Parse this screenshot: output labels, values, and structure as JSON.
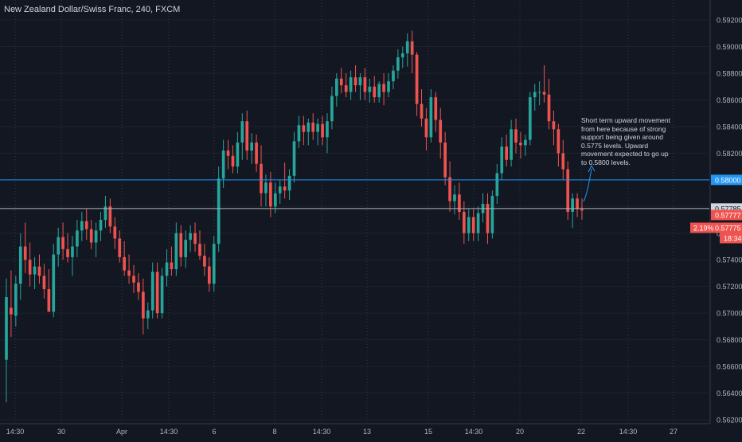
{
  "chart_data": {
    "type": "candlestick",
    "title": "New Zealand Dollar/Swiss Franc, 240, FXCM",
    "annotation": "Short term upward movement from here because of strong support being given around 0.5775 levels. Upward movement expected to go up to 0.5800 levels.",
    "ylim": [
      0.5617,
      0.5935
    ],
    "y_ticks": [
      "0.59200",
      "0.59000",
      "0.58800",
      "0.58600",
      "0.58400",
      "0.58200",
      "0.58000",
      "0.57800",
      "0.57600",
      "0.57400",
      "0.57200",
      "0.57000",
      "0.56800",
      "0.56600",
      "0.56400",
      "0.56200"
    ],
    "x_ticks": [
      "14:30",
      "30",
      "Apr",
      "14:30",
      "6",
      "8",
      "14:30",
      "13",
      "15",
      "14:30",
      "20",
      "22",
      "14:30",
      "27"
    ],
    "price_lines": [
      {
        "label": "0.58000",
        "value": 0.58,
        "color": "#2196f3"
      },
      {
        "label": "0.57785",
        "value": 0.57785,
        "color": "#b2b5be"
      }
    ],
    "price_tags": [
      {
        "label": "0.57777",
        "value": 0.57777,
        "color": "#ef5350"
      },
      {
        "label": "0.57775",
        "value": 0.57775,
        "color": "#ef5350"
      },
      {
        "label": "18:34",
        "value": 0.575,
        "color": "#ef5350"
      }
    ],
    "change_label": "2.19%",
    "colors": {
      "up": "#26a69a",
      "down": "#ef5350",
      "background": "#131722",
      "grid": "#1e222d",
      "vgrid": "#2a3a5a",
      "text": "#b2b5be"
    },
    "candles": [
      {
        "o": 0.5665,
        "h": 0.5726,
        "l": 0.5633,
        "c": 0.5712
      },
      {
        "o": 0.5704,
        "h": 0.5732,
        "l": 0.5682,
        "c": 0.5699
      },
      {
        "o": 0.5698,
        "h": 0.5728,
        "l": 0.569,
        "c": 0.5722
      },
      {
        "o": 0.5722,
        "h": 0.576,
        "l": 0.571,
        "c": 0.575
      },
      {
        "o": 0.575,
        "h": 0.5768,
        "l": 0.573,
        "c": 0.574
      },
      {
        "o": 0.574,
        "h": 0.5753,
        "l": 0.572,
        "c": 0.5729
      },
      {
        "o": 0.5729,
        "h": 0.5742,
        "l": 0.5718,
        "c": 0.5735
      },
      {
        "o": 0.5735,
        "h": 0.5744,
        "l": 0.5722,
        "c": 0.5728
      },
      {
        "o": 0.5728,
        "h": 0.5737,
        "l": 0.5711,
        "c": 0.5718
      },
      {
        "o": 0.5718,
        "h": 0.5733,
        "l": 0.5702,
        "c": 0.5701
      },
      {
        "o": 0.5701,
        "h": 0.5752,
        "l": 0.5697,
        "c": 0.5744
      },
      {
        "o": 0.5744,
        "h": 0.5764,
        "l": 0.5735,
        "c": 0.5757
      },
      {
        "o": 0.5757,
        "h": 0.5768,
        "l": 0.574,
        "c": 0.5748
      },
      {
        "o": 0.5748,
        "h": 0.576,
        "l": 0.5738,
        "c": 0.5742
      },
      {
        "o": 0.5742,
        "h": 0.5758,
        "l": 0.5728,
        "c": 0.575
      },
      {
        "o": 0.575,
        "h": 0.577,
        "l": 0.5742,
        "c": 0.5762
      },
      {
        "o": 0.5762,
        "h": 0.5776,
        "l": 0.5754,
        "c": 0.5769
      },
      {
        "o": 0.5769,
        "h": 0.5778,
        "l": 0.5755,
        "c": 0.5763
      },
      {
        "o": 0.5763,
        "h": 0.577,
        "l": 0.5748,
        "c": 0.5753
      },
      {
        "o": 0.5753,
        "h": 0.5768,
        "l": 0.5742,
        "c": 0.5762
      },
      {
        "o": 0.5762,
        "h": 0.5776,
        "l": 0.5754,
        "c": 0.577
      },
      {
        "o": 0.577,
        "h": 0.5788,
        "l": 0.5764,
        "c": 0.578
      },
      {
        "o": 0.578,
        "h": 0.5786,
        "l": 0.576,
        "c": 0.5765
      },
      {
        "o": 0.5765,
        "h": 0.5772,
        "l": 0.5748,
        "c": 0.5756
      },
      {
        "o": 0.5756,
        "h": 0.5762,
        "l": 0.5738,
        "c": 0.5742
      },
      {
        "o": 0.5742,
        "h": 0.5754,
        "l": 0.5728,
        "c": 0.5732
      },
      {
        "o": 0.5732,
        "h": 0.5744,
        "l": 0.5722,
        "c": 0.5728
      },
      {
        "o": 0.5728,
        "h": 0.5736,
        "l": 0.5715,
        "c": 0.5723
      },
      {
        "o": 0.5723,
        "h": 0.573,
        "l": 0.571,
        "c": 0.5716
      },
      {
        "o": 0.5716,
        "h": 0.5726,
        "l": 0.5684,
        "c": 0.5696
      },
      {
        "o": 0.5696,
        "h": 0.5708,
        "l": 0.5688,
        "c": 0.5702
      },
      {
        "o": 0.5702,
        "h": 0.5738,
        "l": 0.5696,
        "c": 0.5731
      },
      {
        "o": 0.5731,
        "h": 0.5738,
        "l": 0.5696,
        "c": 0.57
      },
      {
        "o": 0.57,
        "h": 0.5734,
        "l": 0.5696,
        "c": 0.5728
      },
      {
        "o": 0.5728,
        "h": 0.5748,
        "l": 0.572,
        "c": 0.5738
      },
      {
        "o": 0.5738,
        "h": 0.575,
        "l": 0.5728,
        "c": 0.5733
      },
      {
        "o": 0.5733,
        "h": 0.5768,
        "l": 0.5728,
        "c": 0.576
      },
      {
        "o": 0.576,
        "h": 0.5766,
        "l": 0.5735,
        "c": 0.5742
      },
      {
        "o": 0.5742,
        "h": 0.5762,
        "l": 0.5734,
        "c": 0.5755
      },
      {
        "o": 0.5755,
        "h": 0.5766,
        "l": 0.5746,
        "c": 0.576
      },
      {
        "o": 0.576,
        "h": 0.5768,
        "l": 0.5746,
        "c": 0.5752
      },
      {
        "o": 0.5752,
        "h": 0.5762,
        "l": 0.574,
        "c": 0.5743
      },
      {
        "o": 0.5743,
        "h": 0.5752,
        "l": 0.5728,
        "c": 0.5735
      },
      {
        "o": 0.5735,
        "h": 0.5742,
        "l": 0.5716,
        "c": 0.5722
      },
      {
        "o": 0.5722,
        "h": 0.5758,
        "l": 0.5716,
        "c": 0.5752
      },
      {
        "o": 0.5752,
        "h": 0.581,
        "l": 0.5746,
        "c": 0.5801
      },
      {
        "o": 0.5801,
        "h": 0.583,
        "l": 0.5794,
        "c": 0.5822
      },
      {
        "o": 0.5822,
        "h": 0.583,
        "l": 0.5808,
        "c": 0.5818
      },
      {
        "o": 0.5818,
        "h": 0.5826,
        "l": 0.5805,
        "c": 0.581
      },
      {
        "o": 0.581,
        "h": 0.5836,
        "l": 0.5805,
        "c": 0.5828
      },
      {
        "o": 0.5828,
        "h": 0.585,
        "l": 0.5815,
        "c": 0.5844
      },
      {
        "o": 0.5844,
        "h": 0.5852,
        "l": 0.5815,
        "c": 0.5822
      },
      {
        "o": 0.5822,
        "h": 0.5835,
        "l": 0.5812,
        "c": 0.5828
      },
      {
        "o": 0.5828,
        "h": 0.5834,
        "l": 0.5806,
        "c": 0.5812
      },
      {
        "o": 0.5812,
        "h": 0.5826,
        "l": 0.578,
        "c": 0.579
      },
      {
        "o": 0.579,
        "h": 0.5804,
        "l": 0.578,
        "c": 0.5798
      },
      {
        "o": 0.5798,
        "h": 0.5806,
        "l": 0.5772,
        "c": 0.578
      },
      {
        "o": 0.578,
        "h": 0.5798,
        "l": 0.5775,
        "c": 0.579
      },
      {
        "o": 0.579,
        "h": 0.58,
        "l": 0.5782,
        "c": 0.5795
      },
      {
        "o": 0.5795,
        "h": 0.5813,
        "l": 0.5786,
        "c": 0.5792
      },
      {
        "o": 0.5792,
        "h": 0.5808,
        "l": 0.5785,
        "c": 0.5803
      },
      {
        "o": 0.5803,
        "h": 0.5836,
        "l": 0.5798,
        "c": 0.5829
      },
      {
        "o": 0.5829,
        "h": 0.5848,
        "l": 0.5824,
        "c": 0.5841
      },
      {
        "o": 0.5841,
        "h": 0.5848,
        "l": 0.5826,
        "c": 0.5836
      },
      {
        "o": 0.5836,
        "h": 0.5846,
        "l": 0.5826,
        "c": 0.5843
      },
      {
        "o": 0.5843,
        "h": 0.585,
        "l": 0.583,
        "c": 0.5836
      },
      {
        "o": 0.5836,
        "h": 0.5846,
        "l": 0.5826,
        "c": 0.5842
      },
      {
        "o": 0.5842,
        "h": 0.5848,
        "l": 0.5826,
        "c": 0.5832
      },
      {
        "o": 0.5832,
        "h": 0.585,
        "l": 0.582,
        "c": 0.5844
      },
      {
        "o": 0.5844,
        "h": 0.587,
        "l": 0.5838,
        "c": 0.5863
      },
      {
        "o": 0.5863,
        "h": 0.588,
        "l": 0.5855,
        "c": 0.5876
      },
      {
        "o": 0.5876,
        "h": 0.5884,
        "l": 0.5865,
        "c": 0.5871
      },
      {
        "o": 0.5871,
        "h": 0.588,
        "l": 0.5862,
        "c": 0.5866
      },
      {
        "o": 0.5866,
        "h": 0.5882,
        "l": 0.586,
        "c": 0.5877
      },
      {
        "o": 0.5877,
        "h": 0.5886,
        "l": 0.5866,
        "c": 0.5871
      },
      {
        "o": 0.5871,
        "h": 0.588,
        "l": 0.586,
        "c": 0.5877
      },
      {
        "o": 0.5877,
        "h": 0.5884,
        "l": 0.586,
        "c": 0.5866
      },
      {
        "o": 0.5866,
        "h": 0.5876,
        "l": 0.5858,
        "c": 0.587
      },
      {
        "o": 0.587,
        "h": 0.5878,
        "l": 0.5858,
        "c": 0.5862
      },
      {
        "o": 0.5862,
        "h": 0.5874,
        "l": 0.5858,
        "c": 0.5872
      },
      {
        "o": 0.5872,
        "h": 0.588,
        "l": 0.5856,
        "c": 0.5866
      },
      {
        "o": 0.5866,
        "h": 0.588,
        "l": 0.5862,
        "c": 0.5874
      },
      {
        "o": 0.5874,
        "h": 0.5886,
        "l": 0.5868,
        "c": 0.5882
      },
      {
        "o": 0.5882,
        "h": 0.5898,
        "l": 0.5876,
        "c": 0.5892
      },
      {
        "o": 0.5892,
        "h": 0.59,
        "l": 0.5884,
        "c": 0.5895
      },
      {
        "o": 0.5895,
        "h": 0.591,
        "l": 0.5885,
        "c": 0.5904
      },
      {
        "o": 0.5904,
        "h": 0.5912,
        "l": 0.588,
        "c": 0.5894
      },
      {
        "o": 0.5894,
        "h": 0.5896,
        "l": 0.5848,
        "c": 0.5857
      },
      {
        "o": 0.5857,
        "h": 0.5868,
        "l": 0.584,
        "c": 0.5846
      },
      {
        "o": 0.5846,
        "h": 0.5854,
        "l": 0.5822,
        "c": 0.5832
      },
      {
        "o": 0.5832,
        "h": 0.5868,
        "l": 0.5828,
        "c": 0.5862
      },
      {
        "o": 0.5862,
        "h": 0.5866,
        "l": 0.5836,
        "c": 0.5845
      },
      {
        "o": 0.5845,
        "h": 0.5854,
        "l": 0.5816,
        "c": 0.5828
      },
      {
        "o": 0.5828,
        "h": 0.5836,
        "l": 0.5796,
        "c": 0.5802
      },
      {
        "o": 0.5802,
        "h": 0.5814,
        "l": 0.5776,
        "c": 0.5784
      },
      {
        "o": 0.5784,
        "h": 0.5796,
        "l": 0.5774,
        "c": 0.5789
      },
      {
        "o": 0.5789,
        "h": 0.5798,
        "l": 0.577,
        "c": 0.5776
      },
      {
        "o": 0.5776,
        "h": 0.5784,
        "l": 0.5752,
        "c": 0.576
      },
      {
        "o": 0.576,
        "h": 0.5778,
        "l": 0.5754,
        "c": 0.5772
      },
      {
        "o": 0.5772,
        "h": 0.5778,
        "l": 0.5754,
        "c": 0.576
      },
      {
        "o": 0.576,
        "h": 0.578,
        "l": 0.5754,
        "c": 0.5775
      },
      {
        "o": 0.5775,
        "h": 0.579,
        "l": 0.5768,
        "c": 0.5782
      },
      {
        "o": 0.5782,
        "h": 0.579,
        "l": 0.5752,
        "c": 0.576
      },
      {
        "o": 0.576,
        "h": 0.5792,
        "l": 0.5756,
        "c": 0.5788
      },
      {
        "o": 0.5788,
        "h": 0.5812,
        "l": 0.5782,
        "c": 0.5805
      },
      {
        "o": 0.5805,
        "h": 0.5832,
        "l": 0.58,
        "c": 0.5825
      },
      {
        "o": 0.5825,
        "h": 0.5834,
        "l": 0.581,
        "c": 0.5815
      },
      {
        "o": 0.5815,
        "h": 0.5845,
        "l": 0.581,
        "c": 0.5838
      },
      {
        "o": 0.5838,
        "h": 0.5846,
        "l": 0.582,
        "c": 0.5828
      },
      {
        "o": 0.5828,
        "h": 0.5836,
        "l": 0.5816,
        "c": 0.5826
      },
      {
        "o": 0.5826,
        "h": 0.5834,
        "l": 0.5818,
        "c": 0.583
      },
      {
        "o": 0.583,
        "h": 0.5866,
        "l": 0.5826,
        "c": 0.5862
      },
      {
        "o": 0.5862,
        "h": 0.5872,
        "l": 0.5852,
        "c": 0.5866
      },
      {
        "o": 0.5866,
        "h": 0.5874,
        "l": 0.5856,
        "c": 0.5866
      },
      {
        "o": 0.5866,
        "h": 0.5886,
        "l": 0.5858,
        "c": 0.5864
      },
      {
        "o": 0.5864,
        "h": 0.5876,
        "l": 0.5838,
        "c": 0.5844
      },
      {
        "o": 0.5844,
        "h": 0.5852,
        "l": 0.5826,
        "c": 0.5838
      },
      {
        "o": 0.5838,
        "h": 0.5842,
        "l": 0.581,
        "c": 0.582
      },
      {
        "o": 0.582,
        "h": 0.583,
        "l": 0.58,
        "c": 0.5808
      },
      {
        "o": 0.5808,
        "h": 0.5814,
        "l": 0.577,
        "c": 0.5776
      },
      {
        "o": 0.5776,
        "h": 0.579,
        "l": 0.5764,
        "c": 0.5786
      },
      {
        "o": 0.5786,
        "h": 0.579,
        "l": 0.5772,
        "c": 0.5778
      },
      {
        "o": 0.5778,
        "h": 0.5786,
        "l": 0.577,
        "c": 0.5777
      }
    ]
  }
}
